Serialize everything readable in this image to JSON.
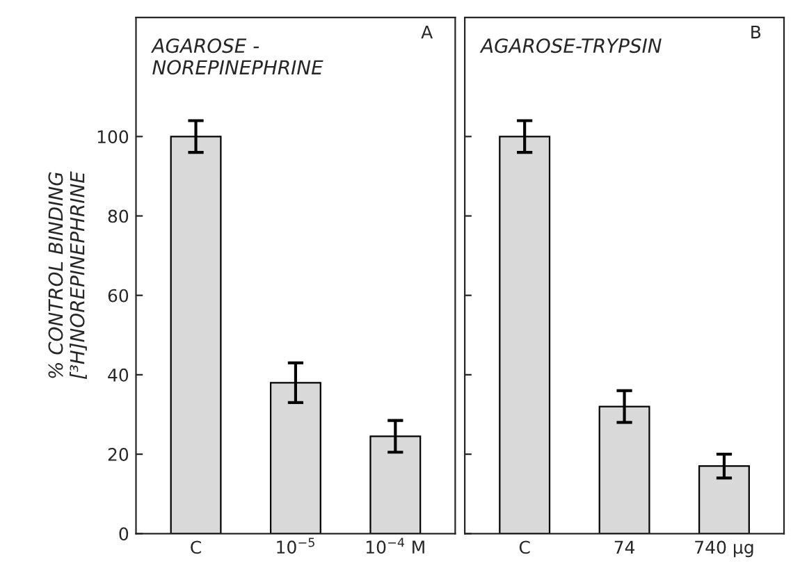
{
  "chart_data": [
    {
      "type": "bar",
      "title": "AGAROSE -\nNOREPINEPHRINE",
      "ylabel": "% CONTROL BINDING\n[³H]NOREPINEPHRINE",
      "categories": [
        "C",
        "10$^{−5}$",
        "10$^{−4}$ M"
      ],
      "values": [
        100,
        38,
        24.5
      ],
      "errors": [
        4,
        5,
        4
      ],
      "color": "#d9d9d9",
      "ylim": [
        0,
        130
      ],
      "yticks": [
        0,
        20,
        40,
        60,
        80,
        100
      ],
      "annotations": [
        "A"
      ],
      "grid": false
    },
    {
      "type": "bar",
      "title": "AGAROSE-TRYPSIN",
      "categories": [
        "C",
        "74",
        "740 µg"
      ],
      "values": [
        100,
        32,
        17
      ],
      "errors": [
        4,
        4,
        3
      ],
      "color": "#d9d9d9",
      "ylim": [
        0,
        130
      ],
      "yticks": [
        0,
        20,
        40,
        60,
        80,
        100
      ],
      "annotations": [
        "B"
      ],
      "tick_labels": "x",
      "grid": false
    }
  ]
}
